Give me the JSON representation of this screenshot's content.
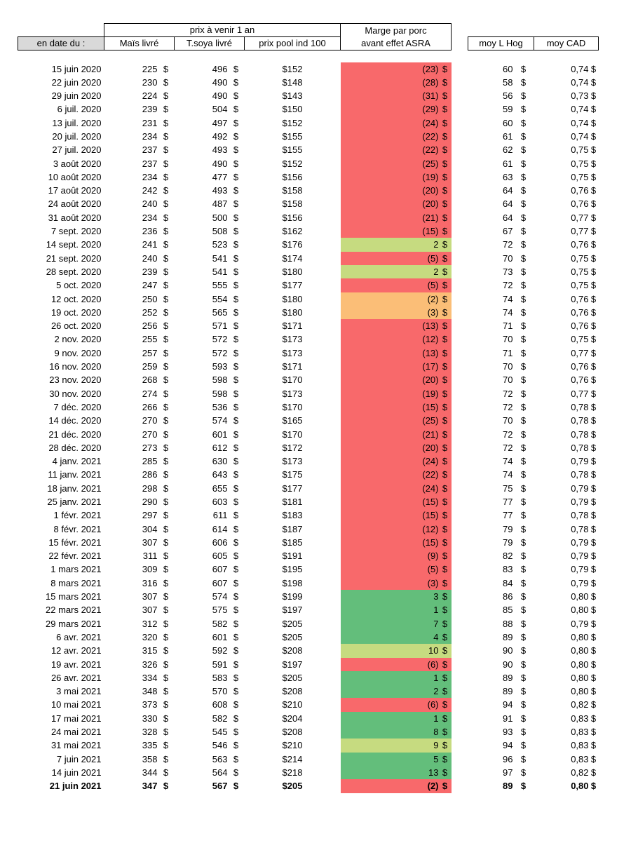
{
  "colors": {
    "red": "#F8696B",
    "green": "#63BE7B",
    "lightgreen": "#C6DB80",
    "orange": "#FBBE77",
    "header_gray": "#D9D9D9"
  },
  "chart_data": {
    "type": "table",
    "group_header": "prix à venir 1 an",
    "currency_symbol": "$",
    "columns": {
      "date": "en date du :",
      "mais": "Maïs livré",
      "soya": "T.soya livré",
      "pool": "prix pool ind 100",
      "marge_line1": "Marge par porc",
      "marge_line2": "avant effet ASRA",
      "hog": "moy L Hog",
      "cad": "moy CAD"
    },
    "rows": [
      {
        "date": "15 juin 2020",
        "mais": "225",
        "soya": "496",
        "pool": "$152",
        "marge": "(23)",
        "marge_color": "red",
        "hog": "60",
        "cad": "0,74",
        "bold": false
      },
      {
        "date": "22 juin 2020",
        "mais": "230",
        "soya": "490",
        "pool": "$148",
        "marge": "(28)",
        "marge_color": "red",
        "hog": "58",
        "cad": "0,74",
        "bold": false
      },
      {
        "date": "29 juin 2020",
        "mais": "224",
        "soya": "490",
        "pool": "$143",
        "marge": "(31)",
        "marge_color": "red",
        "hog": "56",
        "cad": "0,73",
        "bold": false
      },
      {
        "date": "6 juil. 2020",
        "mais": "239",
        "soya": "504",
        "pool": "$150",
        "marge": "(29)",
        "marge_color": "red",
        "hog": "59",
        "cad": "0,74",
        "bold": false
      },
      {
        "date": "13 juil. 2020",
        "mais": "231",
        "soya": "497",
        "pool": "$152",
        "marge": "(24)",
        "marge_color": "red",
        "hog": "60",
        "cad": "0,74",
        "bold": false
      },
      {
        "date": "20 juil. 2020",
        "mais": "234",
        "soya": "492",
        "pool": "$155",
        "marge": "(22)",
        "marge_color": "red",
        "hog": "61",
        "cad": "0,74",
        "bold": false
      },
      {
        "date": "27 juil. 2020",
        "mais": "237",
        "soya": "493",
        "pool": "$155",
        "marge": "(22)",
        "marge_color": "red",
        "hog": "62",
        "cad": "0,75",
        "bold": false
      },
      {
        "date": "3 août 2020",
        "mais": "237",
        "soya": "490",
        "pool": "$152",
        "marge": "(25)",
        "marge_color": "red",
        "hog": "61",
        "cad": "0,75",
        "bold": false
      },
      {
        "date": "10 août 2020",
        "mais": "234",
        "soya": "477",
        "pool": "$156",
        "marge": "(19)",
        "marge_color": "red",
        "hog": "63",
        "cad": "0,75",
        "bold": false
      },
      {
        "date": "17 août 2020",
        "mais": "242",
        "soya": "493",
        "pool": "$158",
        "marge": "(20)",
        "marge_color": "red",
        "hog": "64",
        "cad": "0,76",
        "bold": false
      },
      {
        "date": "24 août 2020",
        "mais": "240",
        "soya": "487",
        "pool": "$158",
        "marge": "(20)",
        "marge_color": "red",
        "hog": "64",
        "cad": "0,76",
        "bold": false
      },
      {
        "date": "31 août 2020",
        "mais": "234",
        "soya": "500",
        "pool": "$156",
        "marge": "(21)",
        "marge_color": "red",
        "hog": "64",
        "cad": "0,77",
        "bold": false
      },
      {
        "date": "7 sept. 2020",
        "mais": "236",
        "soya": "508",
        "pool": "$162",
        "marge": "(15)",
        "marge_color": "red",
        "hog": "67",
        "cad": "0,77",
        "bold": false
      },
      {
        "date": "14 sept. 2020",
        "mais": "241",
        "soya": "523",
        "pool": "$176",
        "marge": "2",
        "marge_color": "lightgreen",
        "hog": "72",
        "cad": "0,76",
        "bold": false
      },
      {
        "date": "21 sept. 2020",
        "mais": "240",
        "soya": "541",
        "pool": "$174",
        "marge": "(5)",
        "marge_color": "red",
        "hog": "70",
        "cad": "0,75",
        "bold": false
      },
      {
        "date": "28 sept. 2020",
        "mais": "239",
        "soya": "541",
        "pool": "$180",
        "marge": "2",
        "marge_color": "lightgreen",
        "hog": "73",
        "cad": "0,75",
        "bold": false
      },
      {
        "date": "5 oct. 2020",
        "mais": "247",
        "soya": "555",
        "pool": "$177",
        "marge": "(5)",
        "marge_color": "red",
        "hog": "72",
        "cad": "0,75",
        "bold": false
      },
      {
        "date": "12 oct. 2020",
        "mais": "250",
        "soya": "554",
        "pool": "$180",
        "marge": "(2)",
        "marge_color": "orange",
        "hog": "74",
        "cad": "0,76",
        "bold": false
      },
      {
        "date": "19 oct. 2020",
        "mais": "252",
        "soya": "565",
        "pool": "$180",
        "marge": "(3)",
        "marge_color": "orange",
        "hog": "74",
        "cad": "0,76",
        "bold": false
      },
      {
        "date": "26 oct. 2020",
        "mais": "256",
        "soya": "571",
        "pool": "$171",
        "marge": "(13)",
        "marge_color": "red",
        "hog": "71",
        "cad": "0,76",
        "bold": false
      },
      {
        "date": "2 nov. 2020",
        "mais": "255",
        "soya": "572",
        "pool": "$173",
        "marge": "(12)",
        "marge_color": "red",
        "hog": "70",
        "cad": "0,75",
        "bold": false
      },
      {
        "date": "9 nov. 2020",
        "mais": "257",
        "soya": "572",
        "pool": "$173",
        "marge": "(13)",
        "marge_color": "red",
        "hog": "71",
        "cad": "0,77",
        "bold": false
      },
      {
        "date": "16 nov. 2020",
        "mais": "259",
        "soya": "593",
        "pool": "$171",
        "marge": "(17)",
        "marge_color": "red",
        "hog": "70",
        "cad": "0,76",
        "bold": false
      },
      {
        "date": "23 nov. 2020",
        "mais": "268",
        "soya": "598",
        "pool": "$170",
        "marge": "(20)",
        "marge_color": "red",
        "hog": "70",
        "cad": "0,76",
        "bold": false
      },
      {
        "date": "30 nov. 2020",
        "mais": "274",
        "soya": "598",
        "pool": "$173",
        "marge": "(19)",
        "marge_color": "red",
        "hog": "72",
        "cad": "0,77",
        "bold": false
      },
      {
        "date": "7 déc. 2020",
        "mais": "266",
        "soya": "536",
        "pool": "$170",
        "marge": "(15)",
        "marge_color": "red",
        "hog": "72",
        "cad": "0,78",
        "bold": false
      },
      {
        "date": "14 déc. 2020",
        "mais": "270",
        "soya": "574",
        "pool": "$165",
        "marge": "(25)",
        "marge_color": "red",
        "hog": "70",
        "cad": "0,78",
        "bold": false
      },
      {
        "date": "21 déc. 2020",
        "mais": "270",
        "soya": "601",
        "pool": "$170",
        "marge": "(21)",
        "marge_color": "red",
        "hog": "72",
        "cad": "0,78",
        "bold": false
      },
      {
        "date": "28 déc. 2020",
        "mais": "273",
        "soya": "612",
        "pool": "$172",
        "marge": "(20)",
        "marge_color": "red",
        "hog": "72",
        "cad": "0,78",
        "bold": false
      },
      {
        "date": "4 janv. 2021",
        "mais": "285",
        "soya": "630",
        "pool": "$173",
        "marge": "(24)",
        "marge_color": "red",
        "hog": "74",
        "cad": "0,79",
        "bold": false
      },
      {
        "date": "11 janv. 2021",
        "mais": "286",
        "soya": "643",
        "pool": "$175",
        "marge": "(22)",
        "marge_color": "red",
        "hog": "74",
        "cad": "0,78",
        "bold": false
      },
      {
        "date": "18 janv. 2021",
        "mais": "298",
        "soya": "655",
        "pool": "$177",
        "marge": "(24)",
        "marge_color": "red",
        "hog": "75",
        "cad": "0,79",
        "bold": false
      },
      {
        "date": "25 janv. 2021",
        "mais": "290",
        "soya": "603",
        "pool": "$181",
        "marge": "(15)",
        "marge_color": "red",
        "hog": "77",
        "cad": "0,79",
        "bold": false
      },
      {
        "date": "1 févr. 2021",
        "mais": "297",
        "soya": "611",
        "pool": "$183",
        "marge": "(15)",
        "marge_color": "red",
        "hog": "77",
        "cad": "0,78",
        "bold": false
      },
      {
        "date": "8 févr. 2021",
        "mais": "304",
        "soya": "614",
        "pool": "$187",
        "marge": "(12)",
        "marge_color": "red",
        "hog": "79",
        "cad": "0,78",
        "bold": false
      },
      {
        "date": "15 févr. 2021",
        "mais": "307",
        "soya": "606",
        "pool": "$185",
        "marge": "(15)",
        "marge_color": "red",
        "hog": "79",
        "cad": "0,79",
        "bold": false
      },
      {
        "date": "22 févr. 2021",
        "mais": "311",
        "soya": "605",
        "pool": "$191",
        "marge": "(9)",
        "marge_color": "red",
        "hog": "82",
        "cad": "0,79",
        "bold": false
      },
      {
        "date": "1 mars 2021",
        "mais": "309",
        "soya": "607",
        "pool": "$195",
        "marge": "(5)",
        "marge_color": "red",
        "hog": "83",
        "cad": "0,79",
        "bold": false
      },
      {
        "date": "8 mars 2021",
        "mais": "316",
        "soya": "607",
        "pool": "$198",
        "marge": "(3)",
        "marge_color": "red",
        "hog": "84",
        "cad": "0,79",
        "bold": false
      },
      {
        "date": "15 mars 2021",
        "mais": "307",
        "soya": "574",
        "pool": "$199",
        "marge": "3",
        "marge_color": "green",
        "hog": "86",
        "cad": "0,80",
        "bold": false
      },
      {
        "date": "22 mars 2021",
        "mais": "307",
        "soya": "575",
        "pool": "$197",
        "marge": "1",
        "marge_color": "green",
        "hog": "85",
        "cad": "0,80",
        "bold": false
      },
      {
        "date": "29 mars 2021",
        "mais": "312",
        "soya": "582",
        "pool": "$205",
        "marge": "7",
        "marge_color": "green",
        "hog": "88",
        "cad": "0,79",
        "bold": false
      },
      {
        "date": "6 avr. 2021",
        "mais": "320",
        "soya": "601",
        "pool": "$205",
        "marge": "4",
        "marge_color": "green",
        "hog": "89",
        "cad": "0,80",
        "bold": false
      },
      {
        "date": "12 avr. 2021",
        "mais": "315",
        "soya": "592",
        "pool": "$208",
        "marge": "10",
        "marge_color": "lightgreen",
        "hog": "90",
        "cad": "0,80",
        "bold": false
      },
      {
        "date": "19 avr. 2021",
        "mais": "326",
        "soya": "591",
        "pool": "$197",
        "marge": "(6)",
        "marge_color": "red",
        "hog": "90",
        "cad": "0,80",
        "bold": false
      },
      {
        "date": "26 avr. 2021",
        "mais": "334",
        "soya": "583",
        "pool": "$205",
        "marge": "1",
        "marge_color": "green",
        "hog": "89",
        "cad": "0,80",
        "bold": false
      },
      {
        "date": "3 mai 2021",
        "mais": "348",
        "soya": "570",
        "pool": "$208",
        "marge": "2",
        "marge_color": "green",
        "hog": "89",
        "cad": "0,80",
        "bold": false
      },
      {
        "date": "10 mai 2021",
        "mais": "373",
        "soya": "608",
        "pool": "$210",
        "marge": "(6)",
        "marge_color": "red",
        "hog": "94",
        "cad": "0,82",
        "bold": false
      },
      {
        "date": "17 mai 2021",
        "mais": "330",
        "soya": "582",
        "pool": "$204",
        "marge": "1",
        "marge_color": "green",
        "hog": "91",
        "cad": "0,83",
        "bold": false
      },
      {
        "date": "24 mai 2021",
        "mais": "328",
        "soya": "545",
        "pool": "$208",
        "marge": "8",
        "marge_color": "green",
        "hog": "93",
        "cad": "0,83",
        "bold": false
      },
      {
        "date": "31 mai 2021",
        "mais": "335",
        "soya": "546",
        "pool": "$210",
        "marge": "9",
        "marge_color": "lightgreen",
        "hog": "94",
        "cad": "0,83",
        "bold": false
      },
      {
        "date": "7 juin 2021",
        "mais": "358",
        "soya": "563",
        "pool": "$214",
        "marge": "5",
        "marge_color": "green",
        "hog": "96",
        "cad": "0,83",
        "bold": false
      },
      {
        "date": "14 juin 2021",
        "mais": "344",
        "soya": "564",
        "pool": "$218",
        "marge": "13",
        "marge_color": "green",
        "hog": "97",
        "cad": "0,82",
        "bold": false
      },
      {
        "date": "21 juin 2021",
        "mais": "347",
        "soya": "567",
        "pool": "$205",
        "marge": "(2)",
        "marge_color": "red",
        "hog": "89",
        "cad": "0,80",
        "bold": true
      }
    ]
  }
}
